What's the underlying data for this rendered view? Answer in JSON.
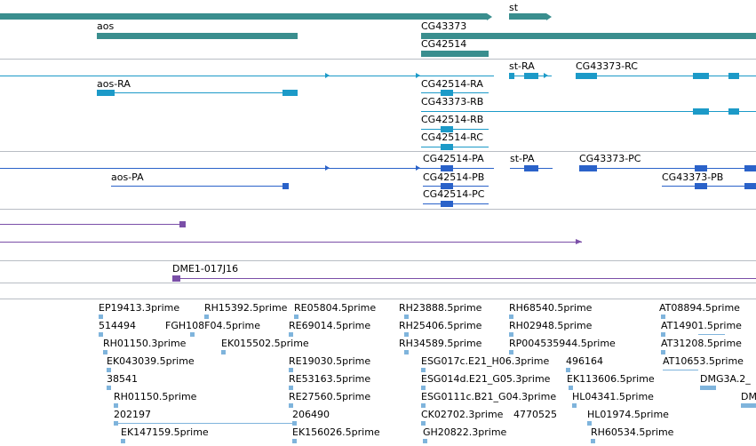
{
  "colors": {
    "gene": "#3a8e8e",
    "transcript": "#1c9ac8",
    "protein": "#2a62c9",
    "clone": "#7b4fa8",
    "est": "#7fb4dc",
    "divider": "#b8bdc4"
  },
  "genes": {
    "st": "st",
    "aos": "aos",
    "cg43373": "CG43373",
    "cg42514": "CG42514"
  },
  "transcripts": {
    "st_ra": "st-RA",
    "cg43373_rc": "CG43373-RC",
    "aos_ra": "aos-RA",
    "cg42514_ra": "CG42514-RA",
    "cg43373_rb": "CG43373-RB",
    "cg42514_rb": "CG42514-RB",
    "cg42514_rc": "CG42514-RC"
  },
  "proteins": {
    "cg42514_pa": "CG42514-PA",
    "st_pa": "st-PA",
    "cg43373_pc": "CG43373-PC",
    "aos_pa": "aos-PA",
    "cg42514_pb": "CG42514-PB",
    "cg43373_pb": "CG43373-PB",
    "cg42514_pc": "CG42514-PC"
  },
  "clone": "DME1-017J16",
  "ests": [
    "EP19413.3prime",
    "RH15392.5prime",
    "RE05804.5prime",
    "RH23888.5prime",
    "RH68540.5prime",
    "AT08894.5prime",
    "514494",
    "FGH108F04.5prime",
    "RE69014.5prime",
    "RH25406.5prime",
    "RH02948.5prime",
    "AT14901.5prime",
    "RH01150.3prime",
    "EK015502.5prime",
    "RH34589.5prime",
    "RP004535944.5prime",
    "AT31208.5prime",
    "EK043039.5prime",
    "RE19030.5prime",
    "ESG017c.E21_H06.3prime",
    "496164",
    "AT10653.5prime",
    "38541",
    "RE53163.5prime",
    "ESG014d.E21_G05.3prime",
    "EK113606.5prime",
    "DMG3A.2_",
    "RH01150.5prime",
    "RE27560.5prime",
    "ESG0111c.B21_G04.3prime",
    "HL04341.5prime",
    "DM",
    "202197",
    "206490",
    "CK02702.3prime",
    "4770525",
    "HL01974.5prime",
    "EK147159.5prime",
    "EK156026.5prime",
    "GH20822.3prime",
    "RH60534.5prime"
  ]
}
